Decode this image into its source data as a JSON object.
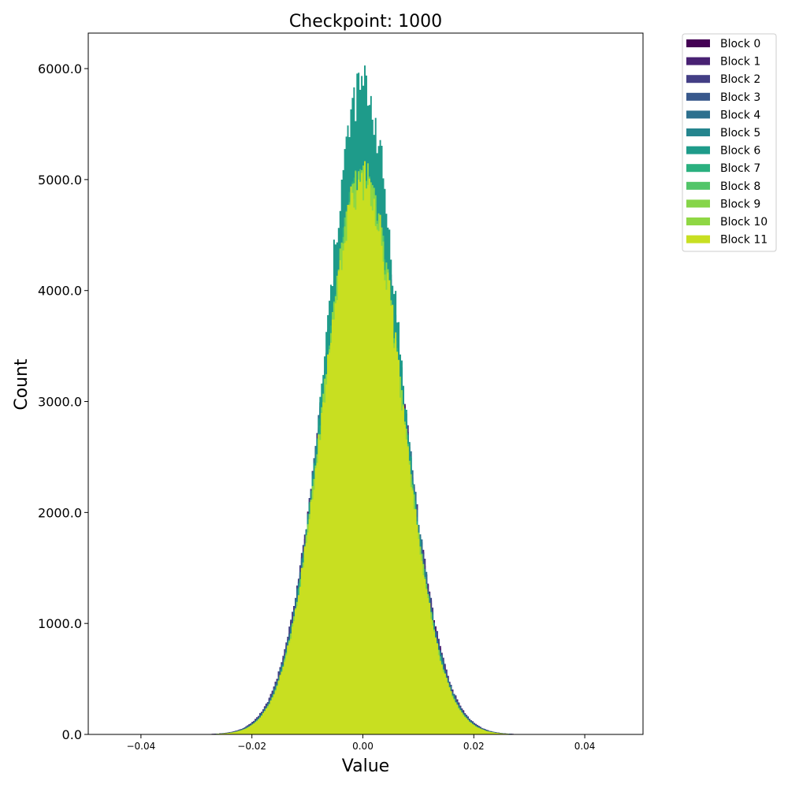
{
  "chart_data": {
    "type": "histogram",
    "title": "Checkpoint: 1000",
    "xlabel": "Value",
    "ylabel": "Count",
    "xlim": [
      -0.0495,
      0.0505
    ],
    "ylim": [
      0,
      6320
    ],
    "xticks": [
      -0.04,
      -0.02,
      0.0,
      0.02,
      0.04
    ],
    "xtick_labels": [
      "−0.04",
      "−0.02",
      "0.00",
      "0.02",
      "0.04"
    ],
    "yticks": [
      0,
      1000,
      2000,
      3000,
      4000,
      5000,
      6000
    ],
    "ytick_labels": [
      "0.0",
      "1000.0",
      "2000.0",
      "3000.0",
      "4000.0",
      "5000.0",
      "6000.0"
    ],
    "grid": false,
    "legend_position": "outside top-right",
    "distribution_center": 0.0,
    "series": [
      {
        "name": "Block 0",
        "color": "#440154",
        "peak": 5000,
        "std": 0.0072
      },
      {
        "name": "Block 1",
        "color": "#482173",
        "peak": 5050,
        "std": 0.0072
      },
      {
        "name": "Block 2",
        "color": "#433e85",
        "peak": 5100,
        "std": 0.0072
      },
      {
        "name": "Block 3",
        "color": "#38588c",
        "peak": 5150,
        "std": 0.0071
      },
      {
        "name": "Block 4",
        "color": "#2d708e",
        "peak": 5200,
        "std": 0.0071
      },
      {
        "name": "Block 5",
        "color": "#25858e",
        "peak": 5300,
        "std": 0.007
      },
      {
        "name": "Block 6",
        "color": "#1e9b8a",
        "peak": 5850,
        "std": 0.0066
      },
      {
        "name": "Block 7",
        "color": "#2ab07f",
        "peak": 5000,
        "std": 0.007
      },
      {
        "name": "Block 8",
        "color": "#52c569",
        "peak": 5000,
        "std": 0.007
      },
      {
        "name": "Block 9",
        "color": "#86d549",
        "peak": 5000,
        "std": 0.007
      },
      {
        "name": "Block 10",
        "color": "#8fd744",
        "peak": 5000,
        "std": 0.007
      },
      {
        "name": "Block 11",
        "color": "#c8df21",
        "peak": 5000,
        "std": 0.007
      }
    ]
  }
}
